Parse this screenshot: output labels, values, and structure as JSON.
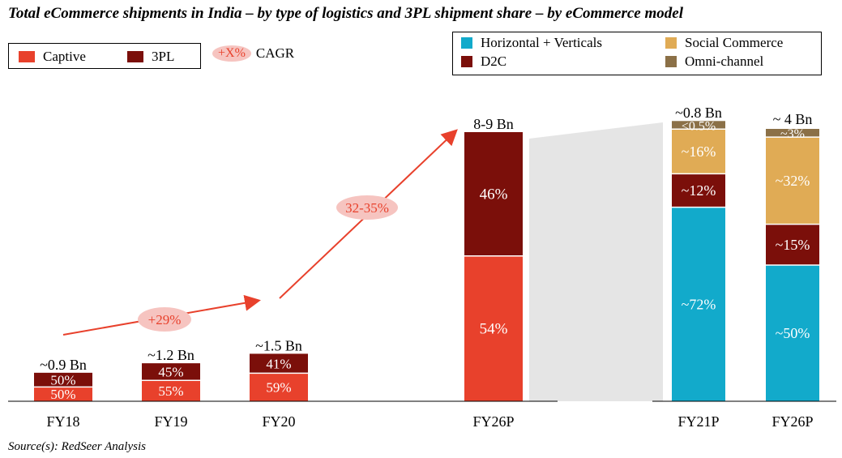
{
  "title": "Total eCommerce shipments in India – by type of logistics and 3PL shipment share – by eCommerce model",
  "source": "Source(s): RedSeer Analysis",
  "colors": {
    "captive": "#e8412c",
    "tpl": "#7b0f0a",
    "horizontal": "#12aacb",
    "d2c": "#7b0f0a",
    "social": "#e0ab55",
    "omni": "#8b7047",
    "arrow": "#e8412c",
    "cagr_oval": "#f6c4c0",
    "connector": "#e5e5e5"
  },
  "legend_left": {
    "captive": "Captive",
    "tpl": "3PL",
    "cagr_symbol": "+X%",
    "cagr_text": "CAGR"
  },
  "legend_right": {
    "horizontal": "Horizontal + Verticals",
    "social": "Social Commerce",
    "d2c": "D2C",
    "omni": "Omni-channel"
  },
  "chart_data": [
    {
      "type": "bar",
      "title": "Total eCommerce shipments by type of logistics",
      "categories": [
        "FY18",
        "FY19",
        "FY20",
        "FY26P"
      ],
      "totals": [
        "~0.9 Bn",
        "~1.2 Bn",
        "~1.5 Bn",
        "8-9 Bn"
      ],
      "total_values_bn": [
        0.9,
        1.2,
        1.5,
        8.5
      ],
      "series": [
        {
          "name": "Captive",
          "values": [
            50,
            55,
            59,
            54
          ],
          "labels": [
            "50%",
            "55%",
            "59%",
            "54%"
          ]
        },
        {
          "name": "3PL",
          "values": [
            50,
            45,
            41,
            46
          ],
          "labels": [
            "50%",
            "45%",
            "41%",
            "46%"
          ]
        }
      ],
      "cagr": [
        {
          "from": "FY18",
          "to": "FY20",
          "label": "+29%"
        },
        {
          "from": "FY20",
          "to": "FY26P",
          "label": "32-35%"
        }
      ]
    },
    {
      "type": "bar",
      "title": "3PL shipment share by eCommerce model",
      "categories": [
        "FY21P",
        "FY26P"
      ],
      "totals": [
        "~0.8 Bn",
        "~ 4 Bn"
      ],
      "series": [
        {
          "name": "Horizontal + Verticals",
          "values": [
            72,
            50
          ],
          "labels": [
            "~72%",
            "~50%"
          ]
        },
        {
          "name": "D2C",
          "values": [
            12,
            15
          ],
          "labels": [
            "~12%",
            "~15%"
          ]
        },
        {
          "name": "Social Commerce",
          "values": [
            16,
            32
          ],
          "labels": [
            "~16%",
            "~32%"
          ]
        },
        {
          "name": "Omni-channel",
          "values": [
            0.5,
            3
          ],
          "labels": [
            "<0.5%",
            "~3%"
          ]
        }
      ]
    }
  ]
}
